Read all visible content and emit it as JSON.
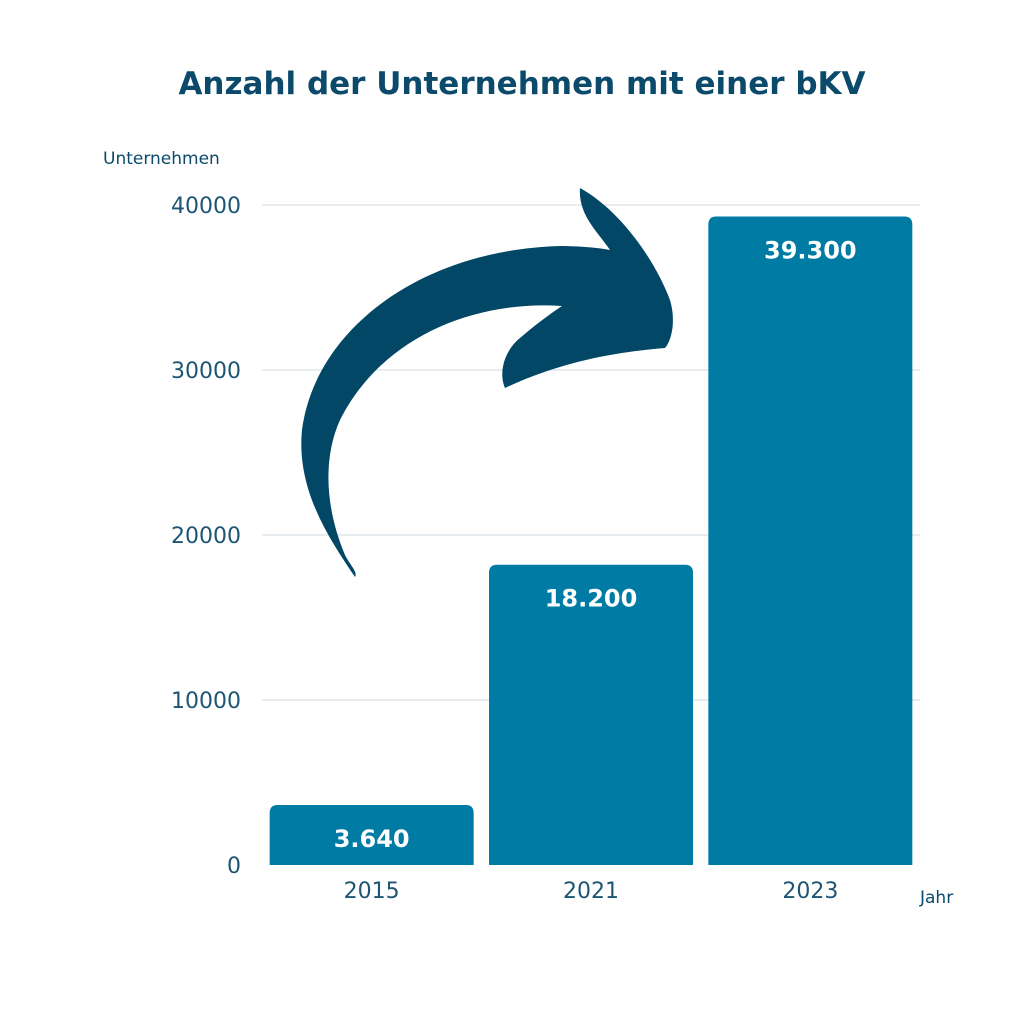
{
  "chart_data": {
    "type": "bar",
    "title": "Anzahl der Unternehmen mit einer bKV",
    "ylabel": "Unternehmen",
    "xlabel": "Jahr",
    "categories": [
      "2015",
      "2021",
      "2023"
    ],
    "values": [
      3640,
      18200,
      39300
    ],
    "data_labels": [
      "3.640",
      "18.200",
      "39.300"
    ],
    "ylim": [
      0,
      40000
    ],
    "yticks": [
      0,
      10000,
      20000,
      30000,
      40000
    ],
    "ytick_labels": [
      "0",
      "10000",
      "20000",
      "30000",
      "40000"
    ],
    "grid": true,
    "annotation": "curved-arrow-up-right",
    "colors": {
      "bar": "#007ba3",
      "arrow": "#024866",
      "title": "#0b4a6a",
      "grid": "#dde5ec"
    }
  }
}
